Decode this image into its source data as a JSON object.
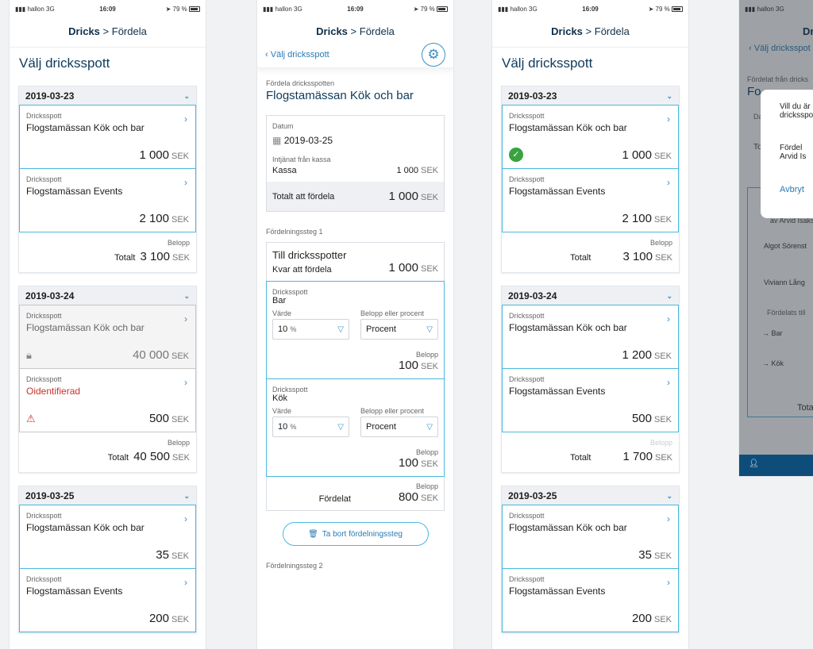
{
  "status": {
    "carrier": "hallon",
    "net": "3G",
    "time": "16:09",
    "battery": "79 %"
  },
  "header": {
    "app": "Dricks",
    "sep": ">",
    "page": "Fördela"
  },
  "p1": {
    "title": "Välj dricksspott",
    "days": [
      {
        "date": "2019-03-23",
        "pots": [
          {
            "label": "Dricksspott",
            "name": "Flogstamässan Kök och bar",
            "amount": "1 000"
          },
          {
            "label": "Dricksspott",
            "name": "Flogstamässan Events",
            "amount": "2 100"
          }
        ],
        "total_label": "Belopp",
        "total_text": "Totalt",
        "total": "3 100"
      },
      {
        "date": "2019-03-24",
        "pots": [
          {
            "label": "Dricksspott",
            "name": "Flogstamässan Kök och bar",
            "amount": "40 000"
          },
          {
            "label": "Dricksspott",
            "name": "Oidentifierad",
            "amount": "500"
          }
        ],
        "total_label": "Belopp",
        "total_text": "Totalt",
        "total": "40 500"
      },
      {
        "date": "2019-03-25",
        "pots": [
          {
            "label": "Dricksspott",
            "name": "Flogstamässan Kök och bar",
            "amount": "35"
          },
          {
            "label": "Dricksspott",
            "name": "Flogstamässan Events",
            "amount": "200"
          }
        ]
      }
    ],
    "currency": "SEK"
  },
  "p2": {
    "back": "Välj dricksspott",
    "sub": "Fördela dricksspotten",
    "title": "Flogstamässan Kök och bar",
    "date_label": "Datum",
    "date": "2019-03-25",
    "earned_label": "Intjänat från kassa",
    "kassa": "Kassa",
    "kassa_amt": "1 000",
    "tot_label": "Totalt att fördela",
    "tot_amt": "1 000",
    "step1": "Fördelningssteg 1",
    "to": "Till dricksspotter",
    "left_label": "Kvar att fördela",
    "left": "1 000",
    "bar": {
      "label": "Dricksspott",
      "name": "Bar",
      "val_label": "Värde",
      "val": "10",
      "pct": "%",
      "type_label": "Belopp eller procent",
      "type": "Procent",
      "amt_label": "Belopp",
      "amt": "100"
    },
    "kok": {
      "label": "Dricksspott",
      "name": "Kök",
      "val_label": "Värde",
      "val": "10",
      "pct": "%",
      "type_label": "Belopp eller procent",
      "type": "Procent",
      "amt_label": "Belopp",
      "amt": "100"
    },
    "dist_label": "Belopp",
    "dist_text": "Fördelat",
    "dist": "800",
    "remove": "Ta bort fördelningssteg",
    "step2": "Fördelningssteg 2"
  },
  "p3": {
    "title": "Välj dricksspott",
    "days": [
      {
        "date": "2019-03-23",
        "pots": [
          {
            "label": "Dricksspott",
            "name": "Flogstamässan Kök och bar",
            "amount": "1 000"
          },
          {
            "label": "Dricksspott",
            "name": "Flogstamässan Events",
            "amount": "2 100"
          }
        ],
        "total_label": "Belopp",
        "total_text": "Totalt",
        "total": "3 100"
      },
      {
        "date": "2019-03-24",
        "pots": [
          {
            "label": "Dricksspott",
            "name": "Flogstamässan Kök och bar",
            "amount": "1 200"
          },
          {
            "label": "Dricksspott",
            "name": "Flogstamässan Events",
            "amount": "500"
          }
        ],
        "total_label": "Belopp",
        "total_text": "Totalt",
        "total": "1 700"
      },
      {
        "date": "2019-03-25",
        "pots": [
          {
            "label": "Dricksspott",
            "name": "Flogstamässan Kök och bar",
            "amount": "35"
          },
          {
            "label": "Dricksspott",
            "name": "Flogstamässan Events",
            "amount": "200"
          }
        ]
      }
    ]
  },
  "p4": {
    "app": "Dr",
    "back": "Välj dricksspot",
    "from": "Fördelat från dricks",
    "fo": "Fo",
    "m1": "Vill du är",
    "m2": "dricksspot",
    "m3": "Fördel",
    "m4": "Arvid Is",
    "cancel": "Avbryt",
    "da": "Da",
    "to": "To",
    "by": "av Arvid Isakss",
    "p1": "Algot Sörenst",
    "p2": "Viviann Lång",
    "dist": "Fördelats till",
    "bar": "Bar",
    "kok": "Kök",
    "tota": "Tota"
  }
}
